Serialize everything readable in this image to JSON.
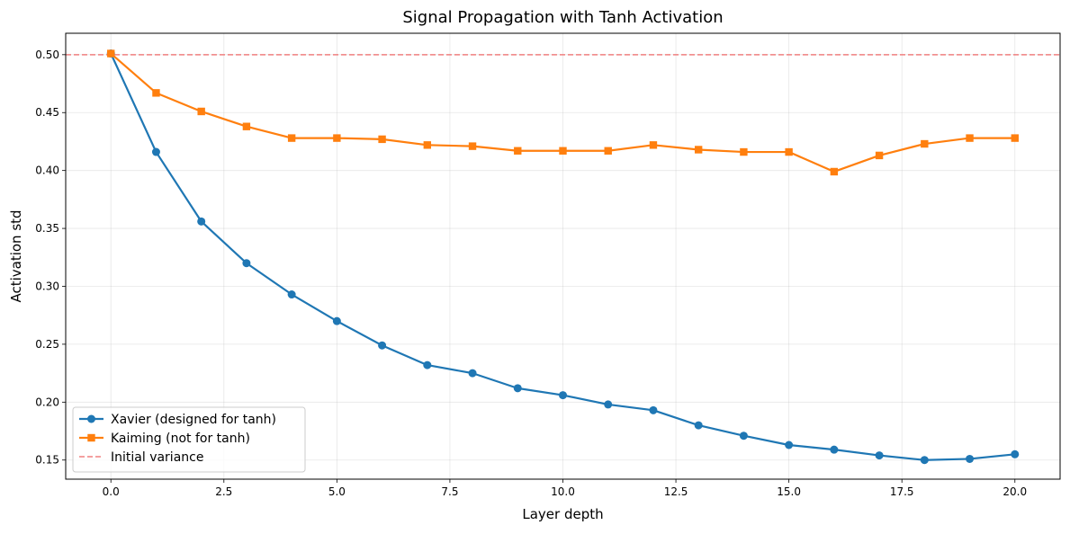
{
  "chart_data": {
    "type": "line",
    "title": "Signal Propagation with Tanh Activation",
    "xlabel": "Layer depth",
    "ylabel": "Activation std",
    "xlim": [
      -1.0,
      21.0
    ],
    "ylim": [
      0.1335,
      0.5185
    ],
    "x_ticks": [
      0.0,
      2.5,
      5.0,
      7.5,
      10.0,
      12.5,
      15.0,
      17.5,
      20.0
    ],
    "x_tick_labels": [
      "0.0",
      "2.5",
      "5.0",
      "7.5",
      "10.0",
      "12.5",
      "15.0",
      "17.5",
      "20.0"
    ],
    "y_ticks": [
      0.15,
      0.2,
      0.25,
      0.3,
      0.35,
      0.4,
      0.45,
      0.5
    ],
    "y_tick_labels": [
      "0.15",
      "0.20",
      "0.25",
      "0.30",
      "0.35",
      "0.40",
      "0.45",
      "0.50"
    ],
    "grid": true,
    "legend_position": "lower-left",
    "x": [
      0,
      1,
      2,
      3,
      4,
      5,
      6,
      7,
      8,
      9,
      10,
      11,
      12,
      13,
      14,
      15,
      16,
      17,
      18,
      19,
      20
    ],
    "series": [
      {
        "name": "Xavier (designed for tanh)",
        "color": "#1f77b4",
        "marker": "circle",
        "values": [
          0.501,
          0.416,
          0.356,
          0.32,
          0.293,
          0.27,
          0.249,
          0.232,
          0.225,
          0.212,
          0.206,
          0.198,
          0.193,
          0.18,
          0.171,
          0.163,
          0.159,
          0.154,
          0.15,
          0.151,
          0.155
        ]
      },
      {
        "name": "Kaiming (not for tanh)",
        "color": "#ff7f0e",
        "marker": "square",
        "values": [
          0.501,
          0.467,
          0.451,
          0.438,
          0.428,
          0.428,
          0.427,
          0.422,
          0.421,
          0.417,
          0.417,
          0.417,
          0.422,
          0.418,
          0.416,
          0.416,
          0.399,
          0.413,
          0.423,
          0.428,
          0.428
        ]
      }
    ],
    "reference_lines": [
      {
        "name": "Initial variance",
        "y": 0.5,
        "color": "#f08080",
        "style": "dashed"
      }
    ]
  }
}
